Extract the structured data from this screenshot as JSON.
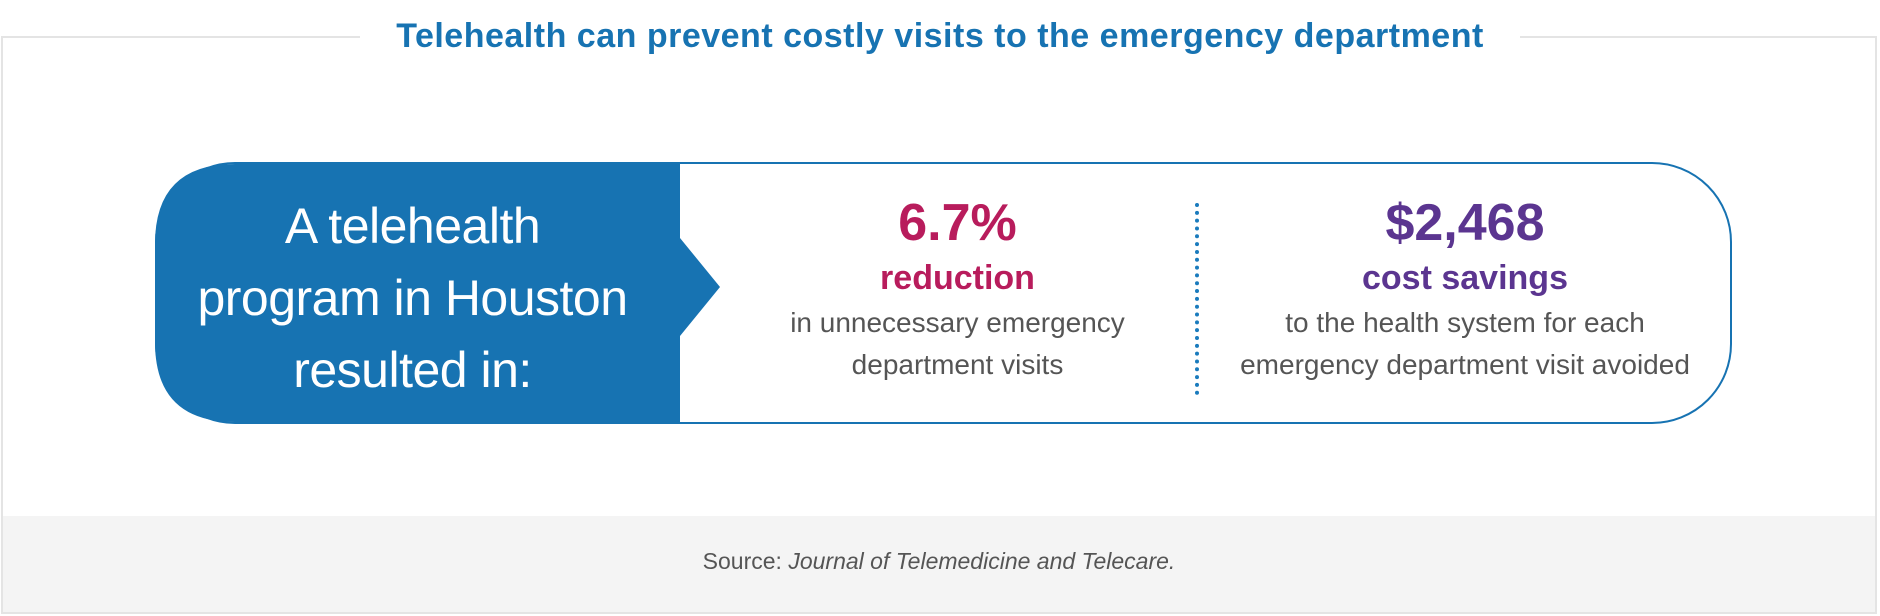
{
  "title": "Telehealth can prevent costly visits to the emergency department",
  "lead": {
    "line1": "A telehealth",
    "line2": "program in Houston",
    "line3": "resulted in:"
  },
  "stats": [
    {
      "value": "6.7%",
      "label": "reduction",
      "desc_line1": "in unnecessary emergency",
      "desc_line2": "department visits",
      "color": "#b81c5c"
    },
    {
      "value": "$2,468",
      "label": "cost savings",
      "desc_line1": "to the health system for each",
      "desc_line2": "emergency department visit avoided",
      "color": "#5b3590"
    }
  ],
  "source": {
    "prefix": "Source: ",
    "journal": "Journal of Telemedicine and Telecare."
  },
  "colors": {
    "brand_blue": "#1773b2",
    "footer_bg": "#f4f4f4"
  }
}
